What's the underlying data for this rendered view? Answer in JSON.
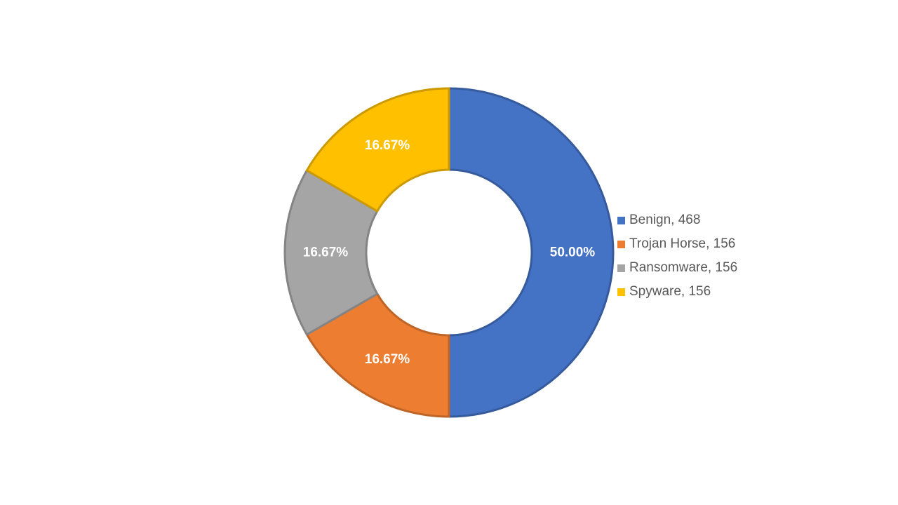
{
  "chart_data": {
    "type": "pie",
    "donut": true,
    "title": "",
    "legend_position": "right",
    "slices": [
      {
        "name": "Benign",
        "value": 468,
        "percent_label": "50.00%",
        "color": "#4472C4",
        "legend_label": "Benign, 468"
      },
      {
        "name": "Trojan Horse",
        "value": 156,
        "percent_label": "16.67%",
        "color": "#ED7D31",
        "legend_label": "Trojan Horse, 156"
      },
      {
        "name": "Ransomware",
        "value": 156,
        "percent_label": "16.67%",
        "color": "#A5A5A5",
        "legend_label": "Ransomware, 156"
      },
      {
        "name": "Spyware",
        "value": 156,
        "percent_label": "16.67%",
        "color": "#FFC000",
        "legend_label": "Spyware, 156"
      }
    ]
  }
}
